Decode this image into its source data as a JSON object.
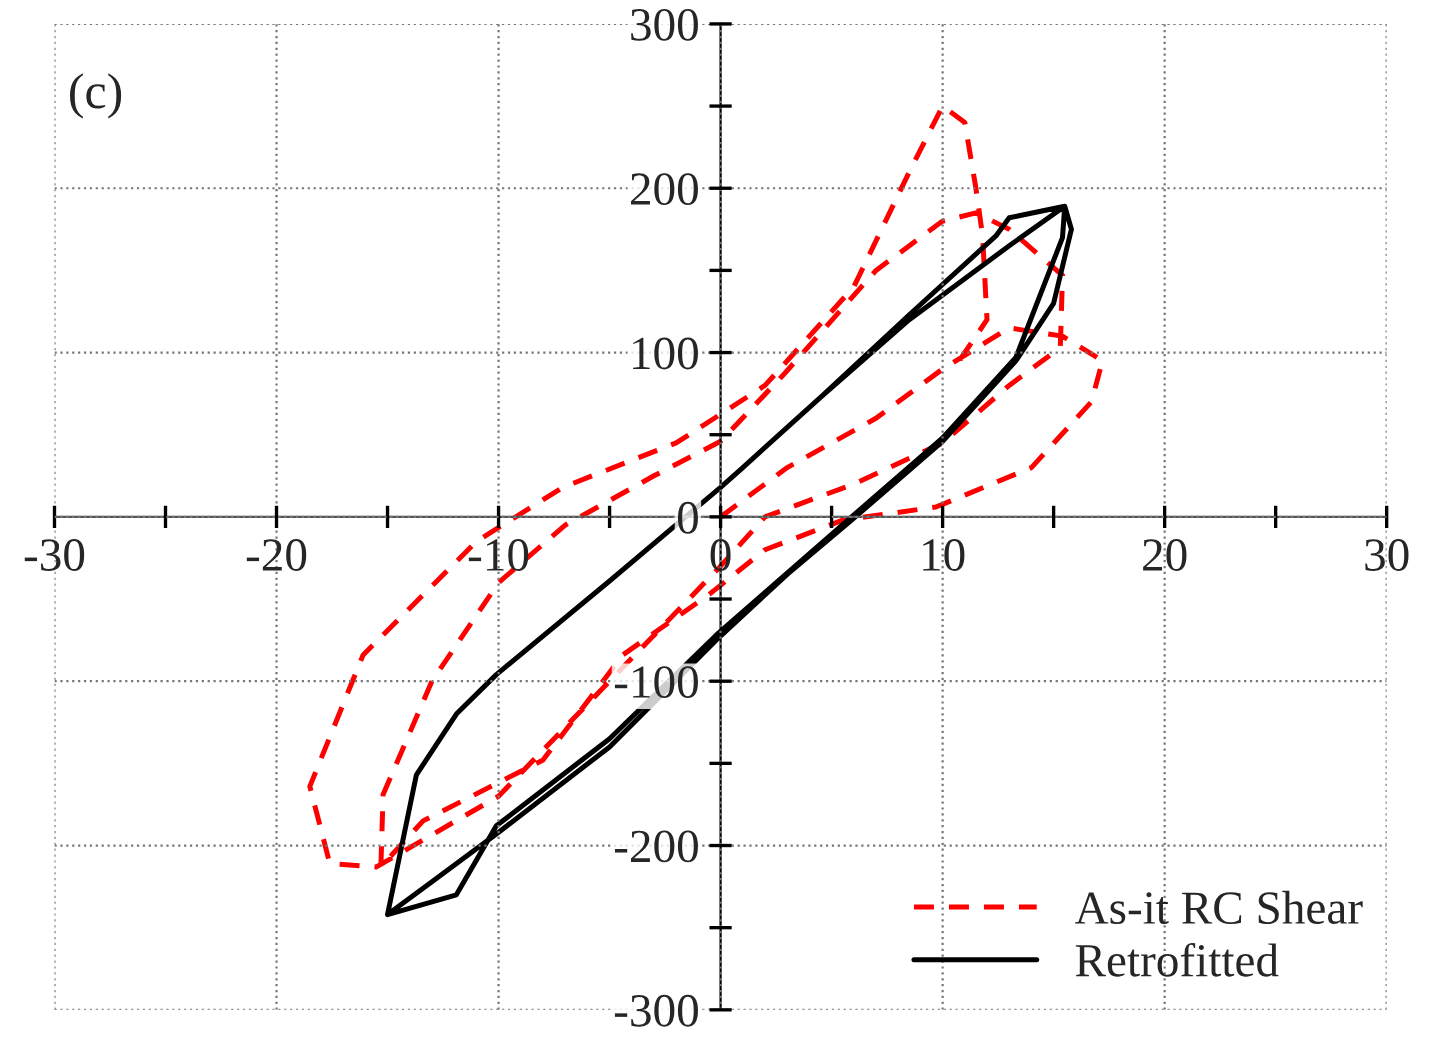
{
  "chart_data": {
    "type": "line",
    "annotations": [
      "(c)"
    ],
    "xlim": [
      -30,
      30
    ],
    "ylim": [
      -300,
      300
    ],
    "xticks": [
      -30,
      {
        "value": -25,
        "label": null
      },
      -20,
      {
        "value": -15,
        "label": null
      },
      -10,
      {
        "value": -5,
        "label": null
      },
      0,
      {
        "value": 5,
        "label": null
      },
      10,
      {
        "value": 15,
        "label": null
      },
      20,
      {
        "value": 25,
        "label": null
      },
      30
    ],
    "yticks": [
      -300,
      {
        "value": -250,
        "label": null
      },
      -200,
      {
        "value": -150,
        "label": null
      },
      -100,
      {
        "value": -50,
        "label": null
      },
      0,
      {
        "value": 50,
        "label": null
      },
      100,
      {
        "value": 150,
        "label": null
      },
      200,
      {
        "value": 250,
        "label": null
      },
      300
    ],
    "grid": true,
    "legend": "bottom right",
    "marker": "none",
    "series": [
      {
        "name": "As-it RC Shear",
        "color": "#ff0000",
        "line_style": "dashed",
        "x": [
          0,
          3,
          7,
          10,
          13,
          15.4,
          17.2,
          16.7,
          14,
          9.7,
          5.5,
          2,
          -0.5,
          -4.4,
          -8,
          -13.4,
          -15.3,
          -15.2,
          -13,
          -10,
          -7,
          -3,
          0,
          2.8,
          7,
          10,
          11.5,
          13,
          15.4,
          15.3,
          13,
          10,
          6,
          2,
          0,
          -5,
          -10,
          -15.5,
          -17.6,
          -18.5,
          -16.1,
          -11,
          -7.1,
          -2,
          2,
          6,
          8.5,
          10,
          11,
          11.5,
          11.8,
          12,
          10.5
        ],
        "values": [
          0,
          30,
          60,
          90,
          115,
          110,
          95,
          70,
          30,
          6,
          -2,
          -20,
          -47,
          -84,
          -148,
          -185,
          -213,
          -169,
          -100,
          -40,
          -5,
          25,
          46,
          86,
          150,
          180,
          185,
          175,
          147,
          103,
          80,
          45,
          20,
          0,
          -30,
          -100,
          -170,
          -213,
          -211,
          -164,
          -84,
          -15,
          18,
          45,
          80,
          140,
          210,
          250,
          240,
          200,
          171,
          120,
          90
        ]
      },
      {
        "name": "Retrofitted",
        "color": "#000000",
        "line_style": "solid",
        "x": [
          1,
          4.6,
          8.5,
          12.4,
          13,
          15.5,
          15.8,
          15,
          13.3,
          10,
          5.9,
          3,
          -0.2,
          -5,
          -10.1,
          -13,
          -15,
          -13.7,
          -11.9,
          -10.1,
          -5,
          0,
          1,
          4.6,
          8.5,
          13,
          15.5,
          15.4,
          13.3,
          10,
          5.9,
          -0.2,
          -5,
          -10.1,
          -11.9,
          -15
        ],
        "values": [
          30,
          74,
          123,
          171,
          182,
          189,
          175,
          130,
          95,
          46,
          -2,
          -35,
          -75,
          -140,
          -193,
          -222,
          -242,
          -157,
          -120,
          -96,
          -39,
          18,
          30,
          74,
          120,
          165,
          189,
          170,
          97,
          48,
          0,
          -72,
          -135,
          -188,
          -230,
          -242
        ]
      }
    ]
  }
}
